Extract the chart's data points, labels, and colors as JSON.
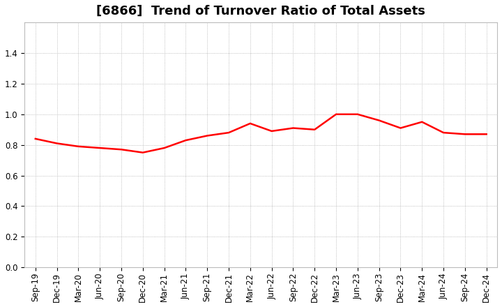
{
  "title": "[6866]  Trend of Turnover Ratio of Total Assets",
  "line_color": "#ff0000",
  "line_width": 1.8,
  "background_color": "#ffffff",
  "grid_color": "#999999",
  "ylim": [
    0.0,
    1.6
  ],
  "yticks": [
    0.0,
    0.2,
    0.4,
    0.6,
    0.8,
    1.0,
    1.2,
    1.4
  ],
  "labels": [
    "Sep-19",
    "Dec-19",
    "Mar-20",
    "Jun-20",
    "Sep-20",
    "Dec-20",
    "Mar-21",
    "Jun-21",
    "Sep-21",
    "Dec-21",
    "Mar-22",
    "Jun-22",
    "Sep-22",
    "Dec-22",
    "Mar-23",
    "Jun-23",
    "Sep-23",
    "Dec-23",
    "Mar-24",
    "Jun-24",
    "Sep-24",
    "Dec-24"
  ],
  "values": [
    0.84,
    0.81,
    0.79,
    0.78,
    0.77,
    0.75,
    0.78,
    0.83,
    0.86,
    0.88,
    0.94,
    0.89,
    0.91,
    0.9,
    1.0,
    1.0,
    0.96,
    0.91,
    0.95,
    0.88,
    0.87,
    0.87
  ],
  "title_fontsize": 13,
  "tick_fontsize": 8.5
}
